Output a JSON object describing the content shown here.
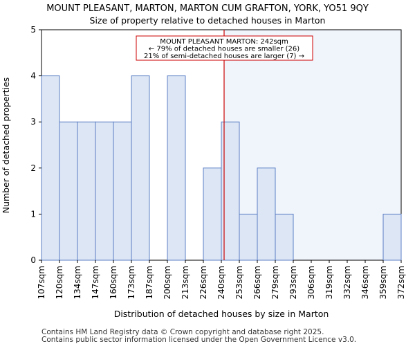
{
  "chart_data": {
    "type": "bar",
    "title": "MOUNT PLEASANT, MARTON, MARTON CUM GRAFTON, YORK, YO51 9QY",
    "subtitle": "Size of property relative to detached houses in Marton",
    "xlabel": "Distribution of detached houses by size in Marton",
    "ylabel": "Number of detached properties",
    "bin_edges": [
      "107sqm",
      "120sqm",
      "134sqm",
      "147sqm",
      "160sqm",
      "173sqm",
      "187sqm",
      "200sqm",
      "213sqm",
      "226sqm",
      "240sqm",
      "253sqm",
      "266sqm",
      "279sqm",
      "293sqm",
      "306sqm",
      "319sqm",
      "332sqm",
      "346sqm",
      "359sqm",
      "372sqm"
    ],
    "values": [
      4,
      3,
      3,
      3,
      3,
      4,
      0,
      4,
      0,
      2,
      3,
      1,
      2,
      1,
      0,
      0,
      0,
      0,
      0,
      1
    ],
    "ylim": [
      0,
      5
    ],
    "yticks": [
      0,
      1,
      2,
      3,
      4,
      5
    ],
    "marker": {
      "value": 242,
      "unit": "sqm",
      "color": "#cc0000"
    },
    "annotation": {
      "line1": "MOUNT PLEASANT MARTON: 242sqm",
      "line2": "← 79% of detached houses are smaller (26)",
      "line3": "21% of semi-detached houses are larger (7) →"
    },
    "colors": {
      "bar_fill": "#dce6f5",
      "bar_stroke": "#5b7fc4",
      "highlight_region": "#f0f4fb",
      "marker_line": "#cc0000"
    },
    "grid": false
  },
  "footer": {
    "line1": "Contains HM Land Registry data © Crown copyright and database right 2025.",
    "line2": "Contains public sector information licensed under the Open Government Licence v3.0."
  }
}
